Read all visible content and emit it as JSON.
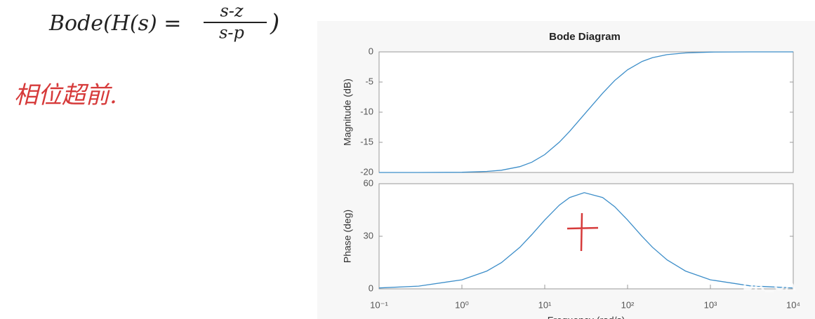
{
  "notes": {
    "formula": {
      "lhs": "Bode(H(s) =",
      "numerator": "s-z",
      "denominator": "s-p",
      "close": ")"
    },
    "remark": "相位超前.",
    "watermark": "DR_CA"
  },
  "chart_data": [
    {
      "type": "line",
      "title": "Bode Diagram",
      "ylabel": "Magnitude (dB)",
      "log_x": true,
      "grid": false,
      "color": "#3d8ec9",
      "x": [
        0.1,
        0.3,
        1,
        2,
        3,
        5,
        7,
        10,
        15,
        20,
        30,
        50,
        70,
        100,
        150,
        200,
        300,
        500,
        1000,
        3000,
        10000
      ],
      "values": [
        -20.0,
        -20.0,
        -19.96,
        -19.83,
        -19.63,
        -19.04,
        -18.29,
        -17.03,
        -14.98,
        -13.18,
        -10.37,
        -6.85,
        -4.74,
        -2.97,
        -1.58,
        -0.96,
        -0.45,
        -0.17,
        -0.04,
        0,
        0
      ],
      "xlim": [
        0.1,
        10000
      ],
      "ylim": [
        -20,
        0
      ],
      "yticks": [
        0,
        -5,
        -10,
        -15,
        -20
      ]
    },
    {
      "type": "line",
      "ylabel": "Phase (deg)",
      "xlabel": "Frequency  (rad/s)",
      "log_x": true,
      "grid": false,
      "color": "#3d8ec9",
      "x": [
        0.1,
        0.3,
        1,
        2,
        3,
        5,
        7,
        10,
        15,
        20,
        30,
        50,
        70,
        100,
        150,
        200,
        300,
        500,
        1000,
        3000,
        10000
      ],
      "values": [
        0.52,
        1.55,
        5.14,
        10.16,
        14.98,
        23.7,
        30.99,
        39.29,
        47.78,
        52.12,
        54.87,
        52.12,
        46.88,
        39.29,
        29.88,
        23.71,
        16.52,
        10.16,
        5.14,
        1.72,
        0.52
      ],
      "xlim": [
        0.1,
        10000
      ],
      "ylim": [
        0,
        60
      ],
      "yticks": [
        0,
        30,
        60
      ],
      "xticks": [
        {
          "value": 0.1,
          "label": "10⁻¹"
        },
        {
          "value": 1,
          "label": "10⁰"
        },
        {
          "value": 10,
          "label": "10¹"
        },
        {
          "value": 100,
          "label": "10²"
        },
        {
          "value": 1000,
          "label": "10³"
        },
        {
          "value": 10000,
          "label": "10⁴"
        }
      ]
    }
  ]
}
